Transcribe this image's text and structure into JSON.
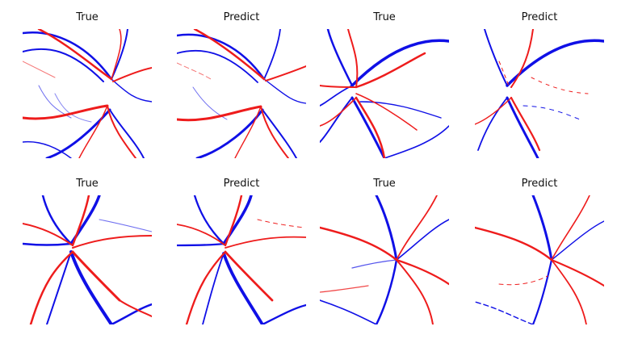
{
  "colors": {
    "artery": "#ee1c1c",
    "vein": "#1010e6",
    "background": "#ffffff"
  },
  "panels": [
    {
      "title": "True"
    },
    {
      "title": "Predict"
    },
    {
      "title": "True"
    },
    {
      "title": "Predict"
    },
    {
      "title": "True"
    },
    {
      "title": "Predict"
    },
    {
      "title": "True"
    },
    {
      "title": "Predict"
    }
  ]
}
